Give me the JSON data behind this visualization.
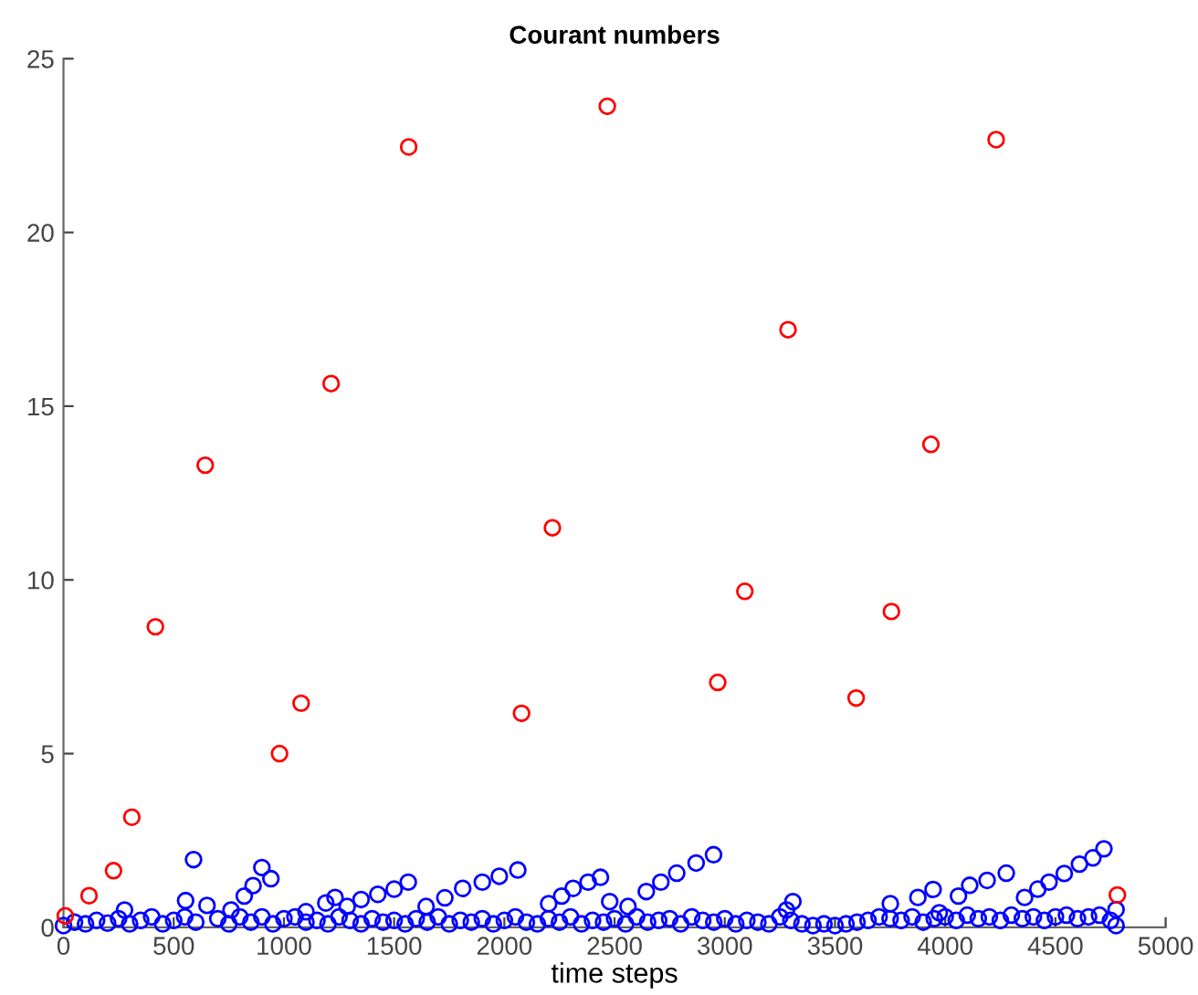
{
  "chart_data": {
    "type": "scatter",
    "title": "Courant numbers",
    "xlabel": "time steps",
    "xlim": [
      0,
      5000
    ],
    "ylim": [
      0,
      25
    ],
    "xticks": [
      0,
      500,
      1000,
      1500,
      2000,
      2500,
      3000,
      3500,
      4000,
      4500,
      5000
    ],
    "yticks": [
      0,
      5,
      10,
      15,
      20,
      25
    ],
    "grid": false,
    "marker": "circle",
    "series": [
      {
        "color": "#0000ff",
        "x": [
          0,
          50,
          100,
          150,
          200,
          250,
          300,
          350,
          400,
          450,
          500,
          550,
          600,
          700,
          750,
          800,
          850,
          900,
          950,
          1000,
          1050,
          1100,
          1150,
          1200,
          1250,
          1300,
          1350,
          1400,
          1450,
          1500,
          1550,
          1600,
          1650,
          1700,
          1750,
          1800,
          1850,
          1900,
          1950,
          2000,
          2050,
          2100,
          2150,
          2200,
          2250,
          2300,
          2350,
          2400,
          2450,
          2500,
          2550,
          2600,
          2650,
          2700,
          2750,
          2800,
          2850,
          2900,
          2950,
          3000,
          3050,
          3100,
          3150,
          3200,
          3250,
          3300,
          3350,
          3400,
          3450,
          3500,
          3550,
          3600,
          3650,
          3700,
          3750,
          3800,
          3850,
          3900,
          3950,
          4000,
          4050,
          4100,
          4150,
          4200,
          4250,
          4300,
          4350,
          4400,
          4450,
          4500,
          4550,
          4600,
          4650,
          4700,
          4750,
          4775,
          277,
          554,
          590,
          651,
          760,
          820,
          860,
          900,
          941,
          1100,
          1190,
          1232,
          1287,
          1350,
          1426,
          1500,
          1564,
          1645,
          1730,
          1811,
          1900,
          1977,
          2061,
          2201,
          2260,
          2312,
          2380,
          2436,
          2478,
          2561,
          2644,
          2710,
          2782,
          2870,
          2949,
          3280,
          3309,
          3751,
          3876,
          3945,
          3973,
          4060,
          4111,
          4190,
          4277,
          4360,
          4420,
          4471,
          4540,
          4609,
          4670,
          4720,
          4775
        ],
        "values": [
          0.05,
          0.15,
          0.1,
          0.2,
          0.12,
          0.25,
          0.1,
          0.2,
          0.3,
          0.1,
          0.2,
          0.3,
          0.15,
          0.25,
          0.1,
          0.3,
          0.15,
          0.3,
          0.1,
          0.25,
          0.3,
          0.15,
          0.2,
          0.1,
          0.3,
          0.2,
          0.1,
          0.25,
          0.15,
          0.2,
          0.1,
          0.25,
          0.15,
          0.3,
          0.1,
          0.2,
          0.15,
          0.25,
          0.1,
          0.2,
          0.3,
          0.15,
          0.1,
          0.25,
          0.15,
          0.3,
          0.1,
          0.2,
          0.15,
          0.25,
          0.1,
          0.3,
          0.15,
          0.2,
          0.25,
          0.1,
          0.3,
          0.2,
          0.15,
          0.25,
          0.1,
          0.2,
          0.15,
          0.1,
          0.3,
          0.2,
          0.1,
          0.05,
          0.1,
          0.05,
          0.1,
          0.15,
          0.2,
          0.3,
          0.25,
          0.2,
          0.3,
          0.15,
          0.25,
          0.3,
          0.2,
          0.35,
          0.25,
          0.3,
          0.2,
          0.35,
          0.25,
          0.3,
          0.2,
          0.3,
          0.35,
          0.25,
          0.3,
          0.35,
          0.2,
          0.05,
          0.5,
          0.77,
          1.95,
          0.63,
          0.5,
          0.9,
          1.2,
          1.72,
          1.4,
          0.45,
          0.7,
          0.86,
          0.6,
          0.8,
          0.95,
          1.1,
          1.3,
          0.6,
          0.85,
          1.12,
          1.3,
          1.47,
          1.65,
          0.68,
          0.9,
          1.12,
          1.3,
          1.44,
          0.74,
          0.6,
          1.03,
          1.3,
          1.56,
          1.85,
          2.09,
          0.5,
          0.74,
          0.68,
          0.86,
          1.09,
          0.42,
          0.9,
          1.21,
          1.35,
          1.56,
          0.86,
          1.1,
          1.3,
          1.55,
          1.82,
          2.0,
          2.26,
          0.51
        ]
      },
      {
        "color": "#ff0000",
        "x": [
          8,
          116,
          227,
          310,
          417,
          643,
          980,
          1078,
          1214,
          1566,
          2078,
          2218,
          2467,
          2968,
          3091,
          3287,
          3596,
          3756,
          3935,
          4231,
          4781
        ],
        "values": [
          0.33,
          0.91,
          1.63,
          3.17,
          8.65,
          13.3,
          5.0,
          6.45,
          15.65,
          22.46,
          6.16,
          11.5,
          23.63,
          7.05,
          9.67,
          17.2,
          6.6,
          9.09,
          13.9,
          22.67,
          0.93
        ]
      }
    ]
  }
}
